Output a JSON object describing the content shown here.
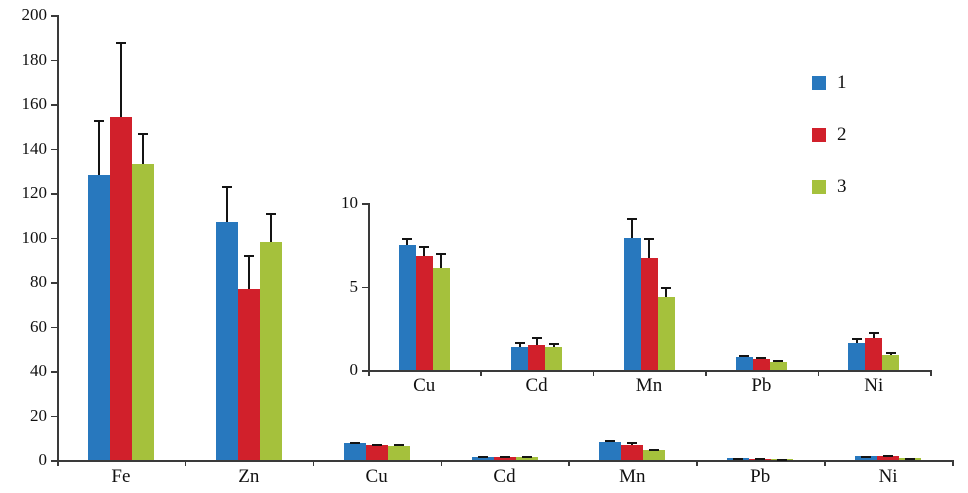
{
  "legend": {
    "position": "top-right",
    "items": [
      {
        "label": "1",
        "color": "#2878be"
      },
      {
        "label": "2",
        "color": "#d1202b"
      },
      {
        "label": "3",
        "color": "#a5c13c"
      }
    ]
  },
  "chart_data": [
    {
      "type": "bar",
      "id": "main",
      "title": "",
      "xlabel": "",
      "ylabel": "",
      "grid": false,
      "ylim": [
        0,
        200
      ],
      "yticks": [
        0,
        20,
        40,
        60,
        80,
        100,
        120,
        140,
        160,
        180,
        200
      ],
      "categories": [
        "Fe",
        "Zn",
        "Cu",
        "Cd",
        "Mn",
        "Pb",
        "Ni"
      ],
      "series": [
        {
          "name": "1",
          "color": "#2878be",
          "values": [
            128,
            107,
            7.5,
            1.4,
            7.9,
            0.75,
            1.6
          ],
          "errors": [
            25,
            16,
            0.4,
            0.3,
            1.2,
            0.15,
            0.3
          ]
        },
        {
          "name": "2",
          "color": "#d1202b",
          "values": [
            154,
            77,
            6.8,
            1.5,
            6.7,
            0.65,
            1.9
          ],
          "errors": [
            34,
            15,
            0.6,
            0.5,
            1.2,
            0.15,
            0.35
          ]
        },
        {
          "name": "3",
          "color": "#a5c13c",
          "values": [
            133,
            98,
            6.1,
            1.35,
            4.4,
            0.5,
            0.9
          ],
          "errors": [
            14,
            13,
            0.9,
            0.25,
            0.6,
            0.1,
            0.2
          ]
        }
      ]
    },
    {
      "type": "bar",
      "id": "inset",
      "title": "",
      "xlabel": "",
      "ylabel": "",
      "grid": false,
      "ylim": [
        0,
        10
      ],
      "yticks": [
        0,
        5,
        10
      ],
      "categories": [
        "Cu",
        "Cd",
        "Mn",
        "Pb",
        "Ni"
      ],
      "series": [
        {
          "name": "1",
          "color": "#2878be",
          "values": [
            7.5,
            1.4,
            7.9,
            0.75,
            1.6
          ],
          "errors": [
            0.4,
            0.3,
            1.2,
            0.15,
            0.3
          ]
        },
        {
          "name": "2",
          "color": "#d1202b",
          "values": [
            6.8,
            1.5,
            6.7,
            0.65,
            1.9
          ],
          "errors": [
            0.6,
            0.5,
            1.2,
            0.15,
            0.35
          ]
        },
        {
          "name": "3",
          "color": "#a5c13c",
          "values": [
            6.1,
            1.35,
            4.4,
            0.5,
            0.9
          ],
          "errors": [
            0.9,
            0.25,
            0.6,
            0.1,
            0.2
          ]
        }
      ]
    }
  ]
}
